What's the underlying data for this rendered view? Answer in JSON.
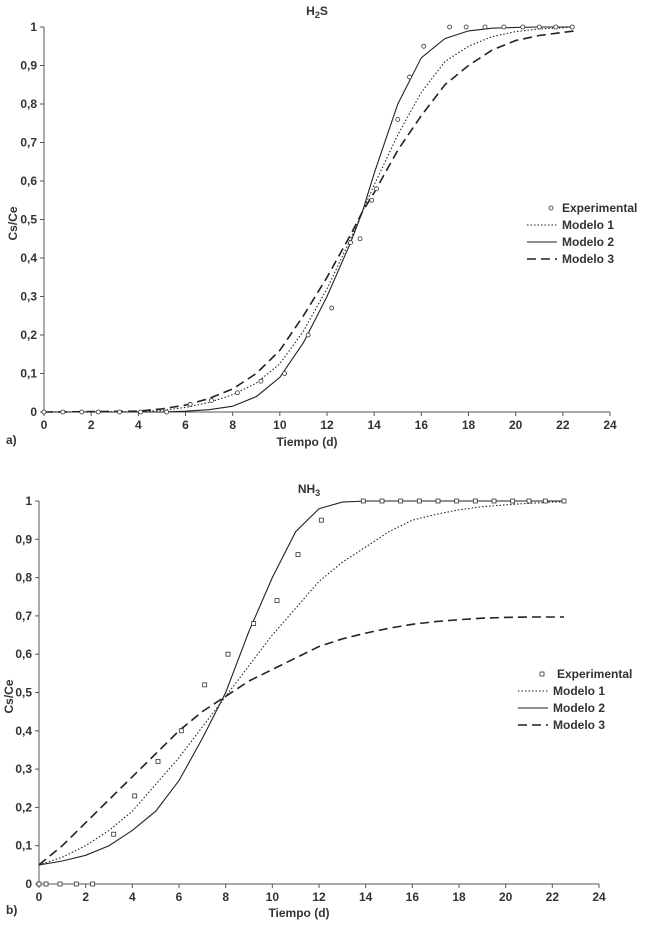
{
  "chart_data": [
    {
      "type": "line",
      "panel_label": "a)",
      "title": "H2S",
      "title_main": "H",
      "title_sub": "2",
      "title_rest": "S",
      "xlabel": "Tiempo (d)",
      "ylabel": "Cs/Ce",
      "xlim": [
        0,
        24
      ],
      "ylim": [
        0,
        1
      ],
      "xticks": [
        "0",
        "2",
        "4",
        "6",
        "8",
        "10",
        "12",
        "14",
        "16",
        "18",
        "20",
        "22",
        "24"
      ],
      "yticks": [
        "0",
        "0,1",
        "0,2",
        "0,3",
        "0,4",
        "0,5",
        "0,6",
        "0,7",
        "0,8",
        "0,9",
        "1"
      ],
      "grid": false,
      "legend_position": "right",
      "marker": "circle",
      "experimental": {
        "name": "Experimental",
        "x": [
          0,
          0.8,
          1.6,
          2.3,
          3.2,
          4.1,
          5.2,
          6.2,
          7.1,
          8.2,
          9.2,
          10.2,
          11.2,
          12.2,
          13,
          13.4,
          13.9,
          14.1,
          15,
          15.5,
          16.1,
          17.2,
          17.9,
          18.7,
          19.5,
          20.3,
          21,
          21.7,
          22.4
        ],
        "y": [
          0,
          0,
          0,
          0,
          0,
          0,
          0,
          0.02,
          0.03,
          0.05,
          0.08,
          0.1,
          0.2,
          0.27,
          0.44,
          0.45,
          0.55,
          0.58,
          0.76,
          0.87,
          0.95,
          1,
          1,
          1,
          1,
          1,
          1,
          1,
          1
        ]
      },
      "series": [
        {
          "name": "Modelo 1",
          "style": "dotted",
          "x": [
            0,
            4,
            5,
            6,
            7,
            8,
            9,
            10,
            11,
            12,
            13,
            13.5,
            14,
            15,
            16,
            17,
            18,
            19,
            20,
            21,
            22,
            22.5
          ],
          "y": [
            0,
            0.001,
            0.004,
            0.012,
            0.025,
            0.045,
            0.075,
            0.125,
            0.21,
            0.32,
            0.45,
            0.52,
            0.59,
            0.72,
            0.83,
            0.91,
            0.95,
            0.975,
            0.988,
            0.995,
            0.998,
            1
          ]
        },
        {
          "name": "Modelo 2",
          "style": "solid",
          "x": [
            0,
            5,
            6,
            7,
            8,
            9,
            10,
            11,
            12,
            13,
            13.5,
            14,
            15,
            16,
            17,
            18,
            19,
            20,
            21,
            22,
            22.5
          ],
          "y": [
            0,
            0,
            0.002,
            0.006,
            0.015,
            0.04,
            0.09,
            0.18,
            0.3,
            0.44,
            0.52,
            0.62,
            0.8,
            0.92,
            0.97,
            0.99,
            0.997,
            0.999,
            1,
            1,
            1
          ]
        },
        {
          "name": "Modelo 3",
          "style": "dashed",
          "x": [
            0,
            4,
            5,
            6,
            7,
            8,
            9,
            10,
            11,
            12,
            13,
            13.5,
            14,
            15,
            16,
            17,
            18,
            19,
            20,
            21,
            22,
            22.5
          ],
          "y": [
            0,
            0.002,
            0.008,
            0.018,
            0.035,
            0.06,
            0.1,
            0.16,
            0.25,
            0.35,
            0.46,
            0.52,
            0.57,
            0.68,
            0.77,
            0.85,
            0.9,
            0.94,
            0.965,
            0.978,
            0.986,
            0.99
          ]
        }
      ]
    },
    {
      "type": "line",
      "panel_label": "b)",
      "title": "NH3",
      "title_main": "NH",
      "title_sub": "3",
      "title_rest": "",
      "xlabel": "Tiempo (d)",
      "ylabel": "Cs/Ce",
      "xlim": [
        0,
        24
      ],
      "ylim": [
        0,
        1
      ],
      "xticks": [
        "0",
        "2",
        "4",
        "6",
        "8",
        "10",
        "12",
        "14",
        "16",
        "18",
        "20",
        "22",
        "24"
      ],
      "yticks": [
        "0",
        "0,1",
        "0,2",
        "0,3",
        "0,4",
        "0,5",
        "0,6",
        "0,7",
        "0,8",
        "0,9",
        "1"
      ],
      "grid": false,
      "legend_position": "right",
      "marker": "square",
      "experimental": {
        "name": "Experimental",
        "x": [
          0,
          0.3,
          0.9,
          1.6,
          2.3,
          3.2,
          4.1,
          5.1,
          6.1,
          7.1,
          8.1,
          9.2,
          10.2,
          11.1,
          12.1,
          13.9,
          14.7,
          15.5,
          16.3,
          17.1,
          17.9,
          18.7,
          19.5,
          20.3,
          21,
          21.7,
          22.5
        ],
        "y": [
          0,
          0,
          0,
          0,
          0,
          0.13,
          0.23,
          0.32,
          0.4,
          0.52,
          0.6,
          0.68,
          0.74,
          0.86,
          0.95,
          1,
          1,
          1,
          1,
          1,
          1,
          1,
          1,
          1,
          1,
          1,
          1
        ]
      },
      "series": [
        {
          "name": "Modelo 1",
          "style": "dotted",
          "x": [
            0,
            1,
            2,
            3,
            4,
            5,
            6,
            7,
            8,
            9,
            10,
            11,
            12,
            13,
            14,
            15,
            16,
            17,
            18,
            19,
            20,
            21,
            22,
            22.5
          ],
          "y": [
            0.05,
            0.07,
            0.1,
            0.14,
            0.19,
            0.26,
            0.33,
            0.41,
            0.49,
            0.57,
            0.65,
            0.72,
            0.79,
            0.84,
            0.88,
            0.92,
            0.95,
            0.965,
            0.977,
            0.985,
            0.99,
            0.994,
            0.997,
            0.998
          ]
        },
        {
          "name": "Modelo 2",
          "style": "solid",
          "x": [
            0,
            1,
            2,
            3,
            4,
            5,
            6,
            7,
            8,
            9,
            10,
            11,
            12,
            13,
            14,
            15,
            16,
            18,
            20,
            22,
            22.5
          ],
          "y": [
            0.05,
            0.06,
            0.075,
            0.1,
            0.14,
            0.19,
            0.27,
            0.38,
            0.5,
            0.66,
            0.8,
            0.92,
            0.98,
            0.997,
            1,
            1,
            1,
            1,
            1,
            1,
            1
          ]
        },
        {
          "name": "Modelo 3",
          "style": "dashed",
          "x": [
            0,
            1,
            2,
            3,
            4,
            5,
            6,
            7,
            8,
            9,
            10,
            11,
            12,
            13,
            14,
            15,
            16,
            17,
            18,
            19,
            20,
            21,
            22,
            22.5
          ],
          "y": [
            0.05,
            0.1,
            0.16,
            0.22,
            0.28,
            0.34,
            0.4,
            0.45,
            0.49,
            0.53,
            0.56,
            0.59,
            0.62,
            0.64,
            0.655,
            0.668,
            0.678,
            0.685,
            0.69,
            0.694,
            0.696,
            0.697,
            0.697,
            0.697
          ]
        }
      ]
    }
  ]
}
